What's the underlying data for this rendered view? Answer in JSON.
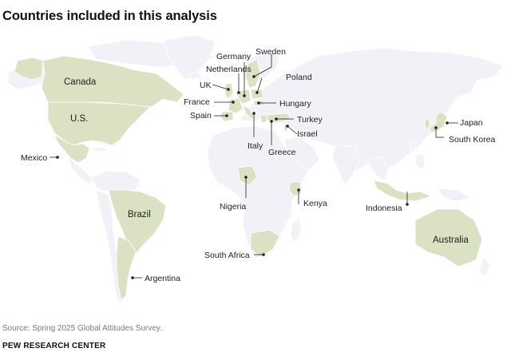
{
  "title": "Countries included in this analysis",
  "source": "Source: Spring 2025 Global Attitudes Survey.",
  "brand": "PEW RESEARCH CENTER",
  "colors": {
    "highlight": "#dbe2c4",
    "land": "#f0f2f7",
    "background": "#ffffff"
  },
  "countries": {
    "canada": "Canada",
    "us": "U.S.",
    "mexico": "Mexico",
    "brazil": "Brazil",
    "argentina": "Argentina",
    "uk": "UK",
    "netherlands": "Netherlands",
    "germany": "Germany",
    "sweden": "Sweden",
    "poland": "Poland",
    "france": "France",
    "hungary": "Hungary",
    "spain": "Spain",
    "italy": "Italy",
    "greece": "Greece",
    "turkey": "Turkey",
    "israel": "Israel",
    "nigeria": "Nigeria",
    "kenya": "Kenya",
    "south_africa": "South Africa",
    "japan": "Japan",
    "south_korea": "South Korea",
    "indonesia": "Indonesia",
    "australia": "Australia"
  }
}
